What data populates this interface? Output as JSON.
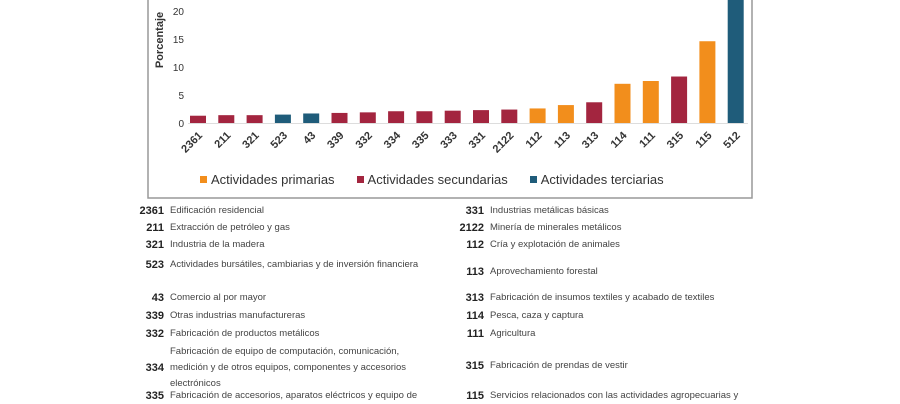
{
  "chart_data": {
    "type": "bar",
    "ylabel": "Porcentaje",
    "ylim": [
      0,
      25
    ],
    "yticks": [
      0,
      5,
      10,
      15,
      20
    ],
    "categories": [
      "2361",
      "211",
      "321",
      "523",
      "43",
      "339",
      "332",
      "334",
      "335",
      "333",
      "331",
      "2122",
      "112",
      "113",
      "313",
      "114",
      "111",
      "315",
      "115",
      "512"
    ],
    "values": [
      1.3,
      1.4,
      1.4,
      1.5,
      1.7,
      1.8,
      1.9,
      2.1,
      2.1,
      2.2,
      2.3,
      2.4,
      2.6,
      3.2,
      3.7,
      7.0,
      7.5,
      8.3,
      14.6,
      25
    ],
    "groups": [
      "sec",
      "sec",
      "sec",
      "ter",
      "ter",
      "sec",
      "sec",
      "sec",
      "sec",
      "sec",
      "sec",
      "sec",
      "pri",
      "pri",
      "sec",
      "pri",
      "pri",
      "sec",
      "pri",
      "ter"
    ],
    "legend": [
      {
        "key": "pri",
        "label": "Actividades primarias",
        "color": "#f28e1c"
      },
      {
        "key": "sec",
        "label": "Actividades secundarias",
        "color": "#a3253f"
      },
      {
        "key": "ter",
        "label": "Actividades terciarias",
        "color": "#1f5c7a"
      }
    ],
    "legend_position": "bottom"
  },
  "codes_left": [
    {
      "code": "2361",
      "desc": "Edificación residencial"
    },
    {
      "code": "211",
      "desc": "Extracción de petróleo y gas"
    },
    {
      "code": "321",
      "desc": "Industria de la madera"
    },
    {
      "code": "523",
      "desc": "Actividades bursátiles, cambiarias y de inversión financiera"
    },
    {
      "code": "43",
      "desc": "Comercio al por mayor"
    },
    {
      "code": "339",
      "desc": "Otras industrias manufactureras"
    },
    {
      "code": "332",
      "desc": "Fabricación de productos metálicos"
    },
    {
      "code": "334",
      "desc": "Fabricación de equipo de computación, comunicación, medición y de otros equipos, componentes y accesorios electrónicos"
    },
    {
      "code": "335",
      "desc": "Fabricación de accesorios, aparatos eléctricos y equipo de"
    }
  ],
  "codes_right": [
    {
      "code": "331",
      "desc": "Industrias metálicas básicas"
    },
    {
      "code": "2122",
      "desc": "Minería de minerales metálicos"
    },
    {
      "code": "112",
      "desc": "Cría y explotación de animales"
    },
    {
      "code": "113",
      "desc": "Aprovechamiento forestal"
    },
    {
      "code": "313",
      "desc": "Fabricación de insumos textiles y acabado de textiles"
    },
    {
      "code": "114",
      "desc": "Pesca, caza y captura"
    },
    {
      "code": "111",
      "desc": "Agricultura"
    },
    {
      "code": "315",
      "desc": "Fabricación de prendas de vestir"
    },
    {
      "code": "115",
      "desc": "Servicios relacionados con las actividades agropecuarias y"
    }
  ]
}
